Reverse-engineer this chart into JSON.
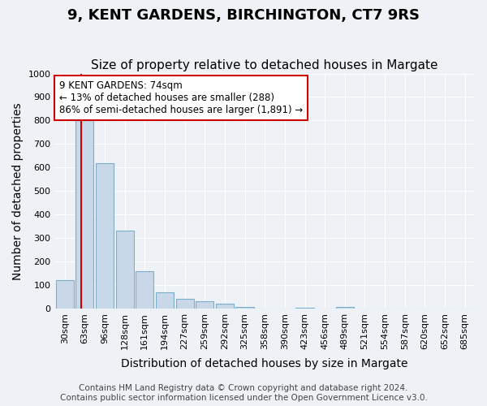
{
  "title": "9, KENT GARDENS, BIRCHINGTON, CT7 9RS",
  "subtitle": "Size of property relative to detached houses in Margate",
  "xlabel": "Distribution of detached houses by size in Margate",
  "ylabel": "Number of detached properties",
  "bin_labels": [
    "30sqm",
    "63sqm",
    "96sqm",
    "128sqm",
    "161sqm",
    "194sqm",
    "227sqm",
    "259sqm",
    "292sqm",
    "325sqm",
    "358sqm",
    "390sqm",
    "423sqm",
    "456sqm",
    "489sqm",
    "521sqm",
    "554sqm",
    "587sqm",
    "620sqm",
    "652sqm",
    "685sqm"
  ],
  "bar_values": [
    120,
    800,
    620,
    330,
    160,
    70,
    40,
    30,
    20,
    5,
    0,
    0,
    3,
    0,
    5,
    0,
    0,
    0,
    0,
    0,
    0
  ],
  "bar_color": "#c8d8e8",
  "bar_edge_color": "#7aadcc",
  "ylim": [
    0,
    1000
  ],
  "yticks": [
    0,
    100,
    200,
    300,
    400,
    500,
    600,
    700,
    800,
    900,
    1000
  ],
  "vline_x": 0.833,
  "vline_color": "#cc0000",
  "annotation_text": "9 KENT GARDENS: 74sqm\n← 13% of detached houses are smaller (288)\n86% of semi-detached houses are larger (1,891) →",
  "annotation_box_color": "#ffffff",
  "annotation_box_edge_color": "#cc0000",
  "footer_text": "Contains HM Land Registry data © Crown copyright and database right 2024.\nContains public sector information licensed under the Open Government Licence v3.0.",
  "background_color": "#eef2f7",
  "grid_color": "#ffffff",
  "title_fontsize": 13,
  "subtitle_fontsize": 11,
  "axis_label_fontsize": 10,
  "tick_fontsize": 8,
  "annotation_fontsize": 8.5,
  "footer_fontsize": 7.5
}
